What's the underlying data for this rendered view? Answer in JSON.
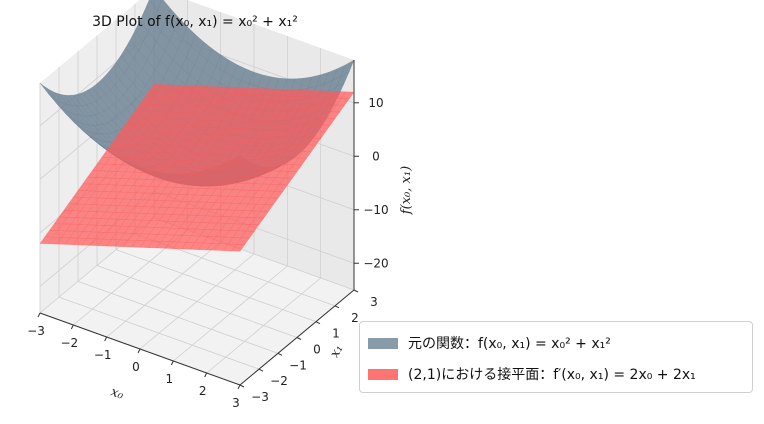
{
  "chart_data": {
    "type": "surface3d",
    "title": "3D Plot of f(x₀, x₁) = x₀² + x₁²",
    "xlabel": "x₀",
    "ylabel": "x₁",
    "zlabel": "f(x₀, x₁)",
    "xlim": [
      -3,
      3
    ],
    "ylim": [
      -3,
      3
    ],
    "zlim": [
      -25,
      18
    ],
    "x_ticks": [
      "−3",
      "−2",
      "−1",
      "0",
      "1",
      "2",
      "3"
    ],
    "y_ticks": [
      "−3",
      "−2",
      "−1",
      "0",
      "1",
      "2",
      "3"
    ],
    "z_ticks": [
      "10",
      "0",
      "−10",
      "−20"
    ],
    "grid": true,
    "legend_position": "lower-right",
    "series": [
      {
        "name": "元の関数：f(x₀, x₁) = x₀² + x₁²",
        "function": "x0^2 + x1^2",
        "color": "#6b8193"
      },
      {
        "name": "(2,1)における接平面：f′(x₀, x₁) = 2x₀ + 2x₁",
        "function": "2*x0 + 2*x1",
        "color": "#ff5a5a"
      }
    ]
  }
}
